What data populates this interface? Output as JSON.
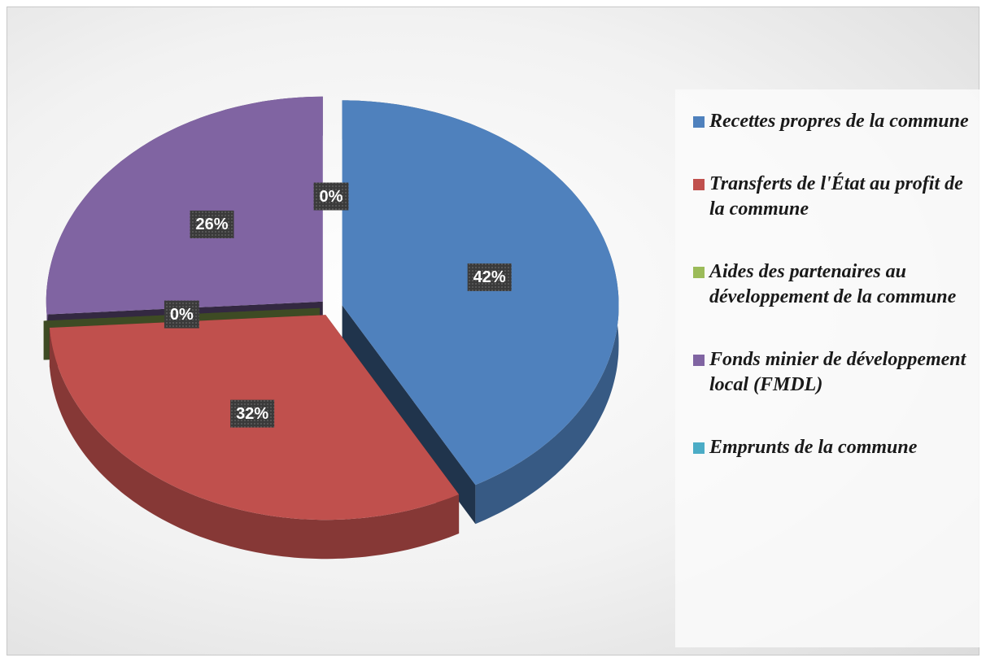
{
  "chart_data": {
    "type": "pie",
    "categories": [
      "Recettes propres de la commune",
      "Transferts de l'État au profit de la commune",
      "Aides des partenaires au développement de la commune",
      "Fonds minier de développement local (FMDL)",
      "Emprunts de la commune"
    ],
    "values": [
      42,
      32,
      0,
      26,
      0
    ],
    "value_labels": [
      "42%",
      "32%",
      "0%",
      "26%",
      "0%"
    ],
    "colors": [
      "#4f81bd",
      "#c0504d",
      "#9bbb59",
      "#8064a2",
      "#4bacc6"
    ],
    "legend": "right"
  }
}
